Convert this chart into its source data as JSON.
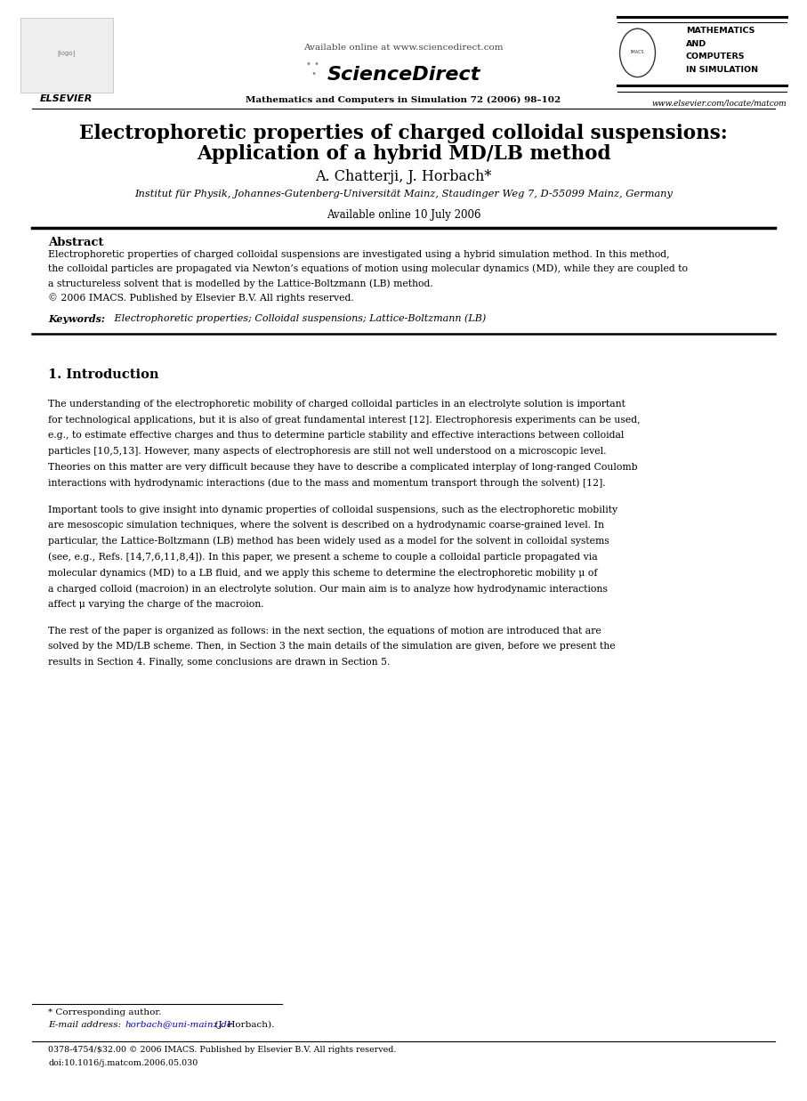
{
  "bg_color": "#ffffff",
  "text_color": "#000000",
  "link_color": "#0000cc",
  "title_text_line1": "Electrophoretic properties of charged colloidal suspensions:",
  "title_text_line2": "Application of a hybrid MD/LB method",
  "authors": "A. Chatterji, J. Horbach*",
  "affiliation": "Institut für Physik, Johannes-Gutenberg-Universität Mainz, Staudinger Weg 7, D-55099 Mainz, Germany",
  "available_online": "Available online 10 July 2006",
  "journal_info": "Mathematics and Computers in Simulation 72 (2006) 98–102",
  "sciencedirect_url": "Available online at www.sciencedirect.com",
  "website_url": "www.elsevier.com/locate/matcom",
  "elsevier_label": "ELSEVIER",
  "journal_logo_text1": "MATHEMATICS",
  "journal_logo_text2": "AND",
  "journal_logo_text3": "COMPUTERS",
  "journal_logo_text4": "IN SIMULATION",
  "abstract_title": "Abstract",
  "keywords_label": "Keywords:",
  "keywords_text": " Electrophoretic properties; Colloidal suspensions; Lattice-Boltzmann (LB)",
  "section1_title": "1. Introduction",
  "footnote_star": "* Corresponding author.",
  "footnote_email_label": "E-mail address:",
  "footnote_email": "horbach@uni-mainz.de",
  "footnote_email_suffix": " (J. Horbach).",
  "footer_copyright": "0378-4754/$32.00 © 2006 IMACS. Published by Elsevier B.V. All rights reserved.",
  "footer_doi": "doi:10.1016/j.matcom.2006.05.030",
  "abstract_lines": [
    "Electrophoretic properties of charged colloidal suspensions are investigated using a hybrid simulation method. In this method,",
    "the colloidal particles are propagated via Newton’s equations of motion using molecular dynamics (MD), while they are coupled to",
    "a structureless solvent that is modelled by the Lattice-Boltzmann (LB) method.",
    "© 2006 IMACS. Published by Elsevier B.V. All rights reserved."
  ],
  "intro1_lines": [
    "The understanding of the electrophoretic mobility of charged colloidal particles in an electrolyte solution is important",
    "for technological applications, but it is also of great fundamental interest [12]. Electrophoresis experiments can be used,",
    "e.g., to estimate effective charges and thus to determine particle stability and effective interactions between colloidal",
    "particles [10,5,13]. However, many aspects of electrophoresis are still not well understood on a microscopic level.",
    "Theories on this matter are very difficult because they have to describe a complicated interplay of long-ranged Coulomb",
    "interactions with hydrodynamic interactions (due to the mass and momentum transport through the solvent) [12]."
  ],
  "intro2_lines": [
    "Important tools to give insight into dynamic properties of colloidal suspensions, such as the electrophoretic mobility",
    "are mesoscopic simulation techniques, where the solvent is described on a hydrodynamic coarse-grained level. In",
    "particular, the Lattice-Boltzmann (LB) method has been widely used as a model for the solvent in colloidal systems",
    "(see, e.g., Refs. [14,7,6,11,8,4]). In this paper, we present a scheme to couple a colloidal particle propagated via",
    "molecular dynamics (MD) to a LB fluid, and we apply this scheme to determine the electrophoretic mobility μ of",
    "a charged colloid (macroion) in an electrolyte solution. Our main aim is to analyze how hydrodynamic interactions",
    "affect μ varying the charge of the macroion."
  ],
  "intro3_lines": [
    "The rest of the paper is organized as follows: in the next section, the equations of motion are introduced that are",
    "solved by the MD/LB scheme. Then, in Section 3 the main details of the simulation are given, before we present the",
    "results in Section 4. Finally, some conclusions are drawn in Section 5."
  ]
}
